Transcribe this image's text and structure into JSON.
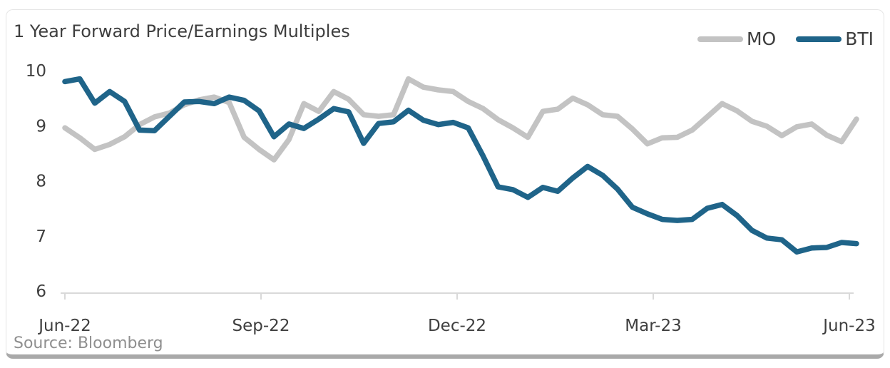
{
  "card": {
    "title": "1 Year Forward Price/Earnings Multiples",
    "source": "Source: Bloomberg"
  },
  "chart_data": {
    "type": "line",
    "title": "1 Year Forward Price/Earnings Multiples",
    "xlabel": "",
    "ylabel": "",
    "x_description": "weekly observations from Jun-2022 to Jun-2023",
    "x_tick_labels": [
      "Jun-22",
      "Sep-22",
      "Dec-22",
      "Mar-23",
      "Jun-23"
    ],
    "y_tick_labels": [
      "10",
      "9",
      "8",
      "7",
      "6"
    ],
    "y_ticks": [
      10,
      9,
      8,
      7,
      6
    ],
    "ylim": [
      6,
      10
    ],
    "grid": false,
    "legend_position": "top-right",
    "axis_color": "#d9d9d9",
    "tick_text_color": "#3f3f3f",
    "series": [
      {
        "name": "MO",
        "color": "#c3c3c3",
        "values": [
          8.96,
          8.78,
          8.57,
          8.66,
          8.8,
          9.02,
          9.16,
          9.23,
          9.38,
          9.47,
          9.52,
          9.42,
          8.79,
          8.57,
          8.38,
          8.75,
          9.4,
          9.26,
          9.62,
          9.48,
          9.2,
          9.17,
          9.2,
          9.85,
          9.7,
          9.65,
          9.62,
          9.44,
          9.31,
          9.11,
          8.96,
          8.79,
          9.26,
          9.3,
          9.5,
          9.38,
          9.2,
          9.17,
          8.94,
          8.67,
          8.78,
          8.79,
          8.92,
          9.16,
          9.4,
          9.27,
          9.08,
          8.99,
          8.82,
          8.98,
          9.03,
          8.83,
          8.71,
          9.12
        ]
      },
      {
        "name": "BTI",
        "color": "#1f6489",
        "values": [
          9.8,
          9.85,
          9.41,
          9.62,
          9.44,
          8.92,
          8.91,
          9.17,
          9.43,
          9.44,
          9.4,
          9.52,
          9.46,
          9.27,
          8.8,
          9.03,
          8.95,
          9.12,
          9.31,
          9.25,
          8.68,
          9.04,
          9.07,
          9.28,
          9.1,
          9.02,
          9.06,
          8.96,
          8.45,
          7.89,
          7.84,
          7.7,
          7.88,
          7.81,
          8.05,
          8.26,
          8.1,
          7.85,
          7.52,
          7.4,
          7.3,
          7.28,
          7.3,
          7.5,
          7.57,
          7.37,
          7.1,
          6.96,
          6.93,
          6.71,
          6.78,
          6.79,
          6.88,
          6.86
        ]
      }
    ],
    "source": "Source: Bloomberg"
  }
}
